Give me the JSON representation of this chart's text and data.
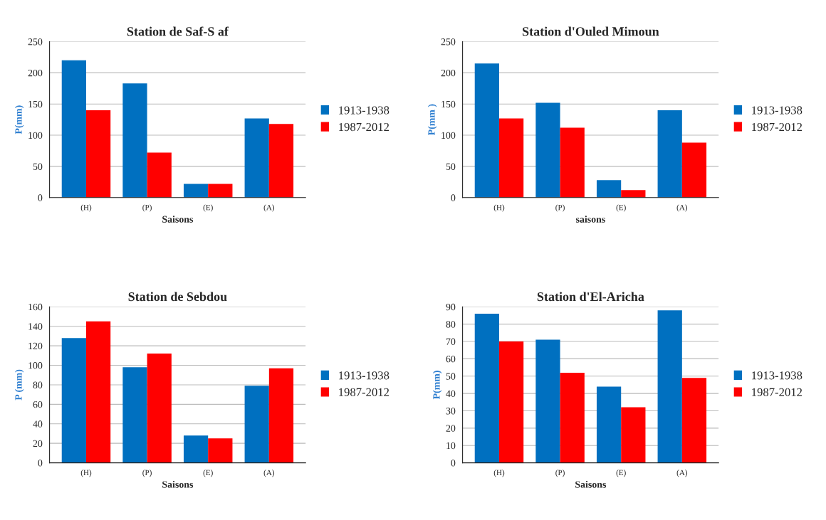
{
  "chart_data": [
    {
      "type": "bar",
      "title": "Station de Saf-S af",
      "xlabel": "Saisons",
      "ylabel": "P(mm)",
      "categories": [
        "(H)",
        "(P)",
        "(E)",
        "(A)"
      ],
      "series": [
        {
          "name": "1913-1938",
          "color": "#0070c0",
          "values": [
            220,
            183,
            22,
            127
          ]
        },
        {
          "name": "1987-2012",
          "color": "#ff0000",
          "values": [
            140,
            72,
            22,
            118
          ]
        }
      ],
      "ylim": [
        0,
        250
      ],
      "yticks": [
        0,
        50,
        100,
        150,
        200,
        250
      ],
      "grid": "y",
      "legend": "right"
    },
    {
      "type": "bar",
      "title": "Station d'Ouled Mimoun",
      "xlabel": "saisons",
      "ylabel": "P(mm )",
      "categories": [
        "(H)",
        "(P)",
        "(E)",
        "(A)"
      ],
      "series": [
        {
          "name": "1913-1938",
          "color": "#0070c0",
          "values": [
            215,
            152,
            28,
            140
          ]
        },
        {
          "name": "1987-2012",
          "color": "#ff0000",
          "values": [
            127,
            112,
            12,
            88
          ]
        }
      ],
      "ylim": [
        0,
        250
      ],
      "yticks": [
        0,
        50,
        100,
        150,
        200,
        250
      ],
      "grid": "y",
      "legend": "right"
    },
    {
      "type": "bar",
      "title": "Station de Sebdou",
      "xlabel": "Saisons",
      "ylabel": "P (mm)",
      "categories": [
        "(H)",
        "(P)",
        "(E)",
        "(A)"
      ],
      "series": [
        {
          "name": "1913-1938",
          "color": "#0070c0",
          "values": [
            128,
            98,
            28,
            79
          ]
        },
        {
          "name": "1987-2012",
          "color": "#ff0000",
          "values": [
            145,
            112,
            25,
            97
          ]
        }
      ],
      "ylim": [
        0,
        160
      ],
      "yticks": [
        0,
        20,
        40,
        60,
        80,
        100,
        120,
        140,
        160
      ],
      "grid": "y",
      "legend": "right"
    },
    {
      "type": "bar",
      "title": "Station d'El-Aricha",
      "xlabel": "Saisons",
      "ylabel": "P(mm)",
      "categories": [
        "(H)",
        "(P)",
        "(E)",
        "(A)"
      ],
      "series": [
        {
          "name": "1913-1938",
          "color": "#0070c0",
          "values": [
            86,
            71,
            44,
            88
          ]
        },
        {
          "name": "1987-2012",
          "color": "#ff0000",
          "values": [
            70,
            52,
            32,
            49
          ]
        }
      ],
      "ylim": [
        0,
        90
      ],
      "yticks": [
        0,
        10,
        20,
        30,
        40,
        50,
        60,
        70,
        80,
        90
      ],
      "grid": "y",
      "legend": "right"
    }
  ]
}
